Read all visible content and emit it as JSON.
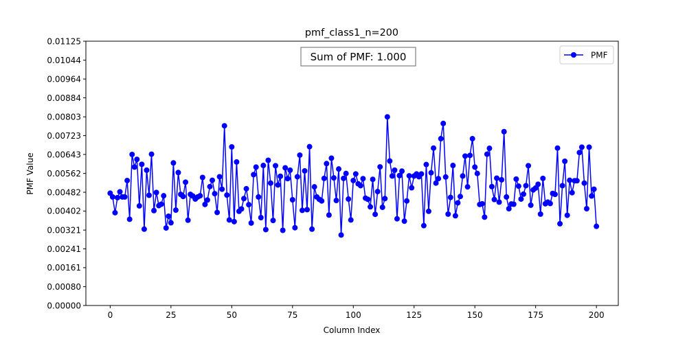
{
  "chart_data": {
    "type": "line",
    "title": "pmf_class1_n=200",
    "xlabel": "Column Index",
    "ylabel": "PMF Value",
    "xlim": [
      -10,
      209
    ],
    "ylim": [
      0,
      0.01125
    ],
    "xticks": [
      0,
      25,
      50,
      75,
      100,
      125,
      150,
      175,
      200
    ],
    "yticks": [
      "0.00000",
      "0.00080",
      "0.00161",
      "0.00241",
      "0.00321",
      "0.00402",
      "0.00482",
      "0.00562",
      "0.00643",
      "0.00723",
      "0.00803",
      "0.00884",
      "0.00964",
      "0.01044",
      "0.01125"
    ],
    "grid": false,
    "legend_position": "top-right",
    "annotation": "Sum of PMF: 1.000",
    "series": [
      {
        "name": "PMF",
        "color": "#0000ff",
        "marker": "circle",
        "values": [
          0.00478,
          0.00462,
          0.00395,
          0.00459,
          0.00484,
          0.00462,
          0.00462,
          0.00532,
          0.00367,
          0.00643,
          0.00589,
          0.00622,
          0.00424,
          0.00601,
          0.00325,
          0.00576,
          0.00469,
          0.00644,
          0.00404,
          0.00481,
          0.00425,
          0.00431,
          0.00467,
          0.0033,
          0.0038,
          0.00352,
          0.00607,
          0.00406,
          0.00566,
          0.00473,
          0.00464,
          0.00525,
          0.00363,
          0.00473,
          0.00466,
          0.00453,
          0.00462,
          0.00467,
          0.00545,
          0.0043,
          0.00449,
          0.00506,
          0.00533,
          0.00476,
          0.00396,
          0.00548,
          0.00495,
          0.00765,
          0.0047,
          0.00364,
          0.00675,
          0.00357,
          0.00611,
          0.00401,
          0.00411,
          0.00455,
          0.00497,
          0.00429,
          0.00351,
          0.00557,
          0.00589,
          0.00462,
          0.00374,
          0.00596,
          0.00323,
          0.00618,
          0.00521,
          0.00362,
          0.00595,
          0.00513,
          0.0055,
          0.0032,
          0.00586,
          0.0054,
          0.00576,
          0.0045,
          0.00331,
          0.00548,
          0.0064,
          0.00405,
          0.00573,
          0.00408,
          0.00676,
          0.00325,
          0.00505,
          0.00462,
          0.00452,
          0.00445,
          0.00541,
          0.00604,
          0.00385,
          0.00627,
          0.00543,
          0.00447,
          0.00581,
          0.003,
          0.00541,
          0.00562,
          0.00453,
          0.00364,
          0.00532,
          0.0056,
          0.00518,
          0.0051,
          0.0054,
          0.00457,
          0.00452,
          0.0042,
          0.00537,
          0.00388,
          0.00485,
          0.0059,
          0.00418,
          0.00455,
          0.00803,
          0.00615,
          0.00551,
          0.00576,
          0.00369,
          0.00553,
          0.00572,
          0.00359,
          0.00445,
          0.00552,
          0.00501,
          0.00551,
          0.0056,
          0.00548,
          0.0056,
          0.0034,
          0.006,
          0.00401,
          0.00565,
          0.0067,
          0.00521,
          0.0054,
          0.0071,
          0.00775,
          0.00547,
          0.00389,
          0.0046,
          0.00596,
          0.00382,
          0.00437,
          0.00464,
          0.00551,
          0.00636,
          0.00505,
          0.00639,
          0.0071,
          0.00589,
          0.00562,
          0.0043,
          0.00433,
          0.00376,
          0.00644,
          0.00669,
          0.00506,
          0.00451,
          0.00542,
          0.0044,
          0.00535,
          0.0074,
          0.00462,
          0.00412,
          0.00432,
          0.00431,
          0.00538,
          0.00508,
          0.00453,
          0.00474,
          0.0051,
          0.00595,
          0.00427,
          0.00492,
          0.005,
          0.00516,
          0.00389,
          0.00541,
          0.00433,
          0.0044,
          0.00434,
          0.00477,
          0.00473,
          0.0067,
          0.00348,
          0.0051,
          0.00614,
          0.00384,
          0.00533,
          0.0048,
          0.00531,
          0.00531,
          0.00651,
          0.00674,
          0.00521,
          0.00412,
          0.00674,
          0.00466,
          0.00495,
          0.00337
        ]
      }
    ]
  }
}
